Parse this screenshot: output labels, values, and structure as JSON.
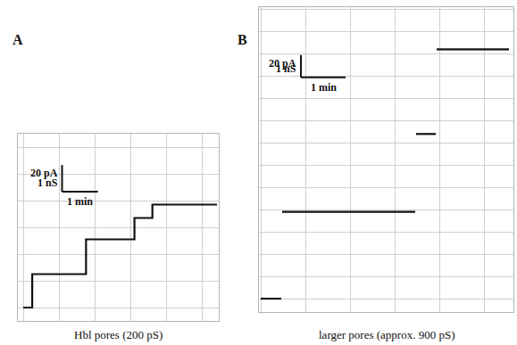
{
  "chart_data": [
    {
      "panel": "A",
      "type": "line",
      "caption": "Hbl pores (200 pS)",
      "x": [
        0,
        0.25,
        0.25,
        1.75,
        1.75,
        3.1,
        3.1,
        3.6,
        3.6,
        5.4
      ],
      "values": [
        0,
        0,
        25,
        25,
        51,
        51,
        67,
        67,
        77,
        77
      ],
      "color": "#111111",
      "xlim": [
        -0.15,
        5.45
      ],
      "ylim": [
        -10,
        130
      ],
      "xticks": [
        0,
        1,
        2,
        3,
        4,
        5
      ],
      "yticks": [
        0,
        20,
        40,
        60,
        80,
        100,
        120
      ],
      "grid": true,
      "tick_labels": false,
      "scale_bar": {
        "current": {
          "value": 20,
          "label": "20 pA"
        },
        "conductance_label": "1 nS",
        "time": {
          "value": 1,
          "label": "1 min"
        }
      }
    },
    {
      "panel": "B",
      "type": "line",
      "caption": "larger pores (approx. 900 pS)",
      "x": [
        0,
        0.46,
        0.46,
        0.48,
        3.46,
        3.46,
        3.48,
        3.92,
        3.92,
        3.94,
        5.56
      ],
      "values": [
        0,
        0,
        null,
        78,
        78,
        null,
        148,
        148,
        null,
        224,
        224
      ],
      "color": "#111111",
      "xlim": [
        -0.04,
        5.66
      ],
      "ylim": [
        -12,
        262
      ],
      "xticks": [
        0,
        1,
        2,
        3,
        4,
        5
      ],
      "yticks": [
        0,
        20,
        40,
        60,
        80,
        100,
        120,
        140,
        160,
        180,
        200,
        220,
        240,
        260
      ],
      "grid": true,
      "tick_labels": false,
      "scale_bar": {
        "current": {
          "value": 20,
          "label": "20 pA"
        },
        "conductance_label": "1 nS",
        "time": {
          "value": 1,
          "label": "1 min"
        }
      }
    }
  ]
}
